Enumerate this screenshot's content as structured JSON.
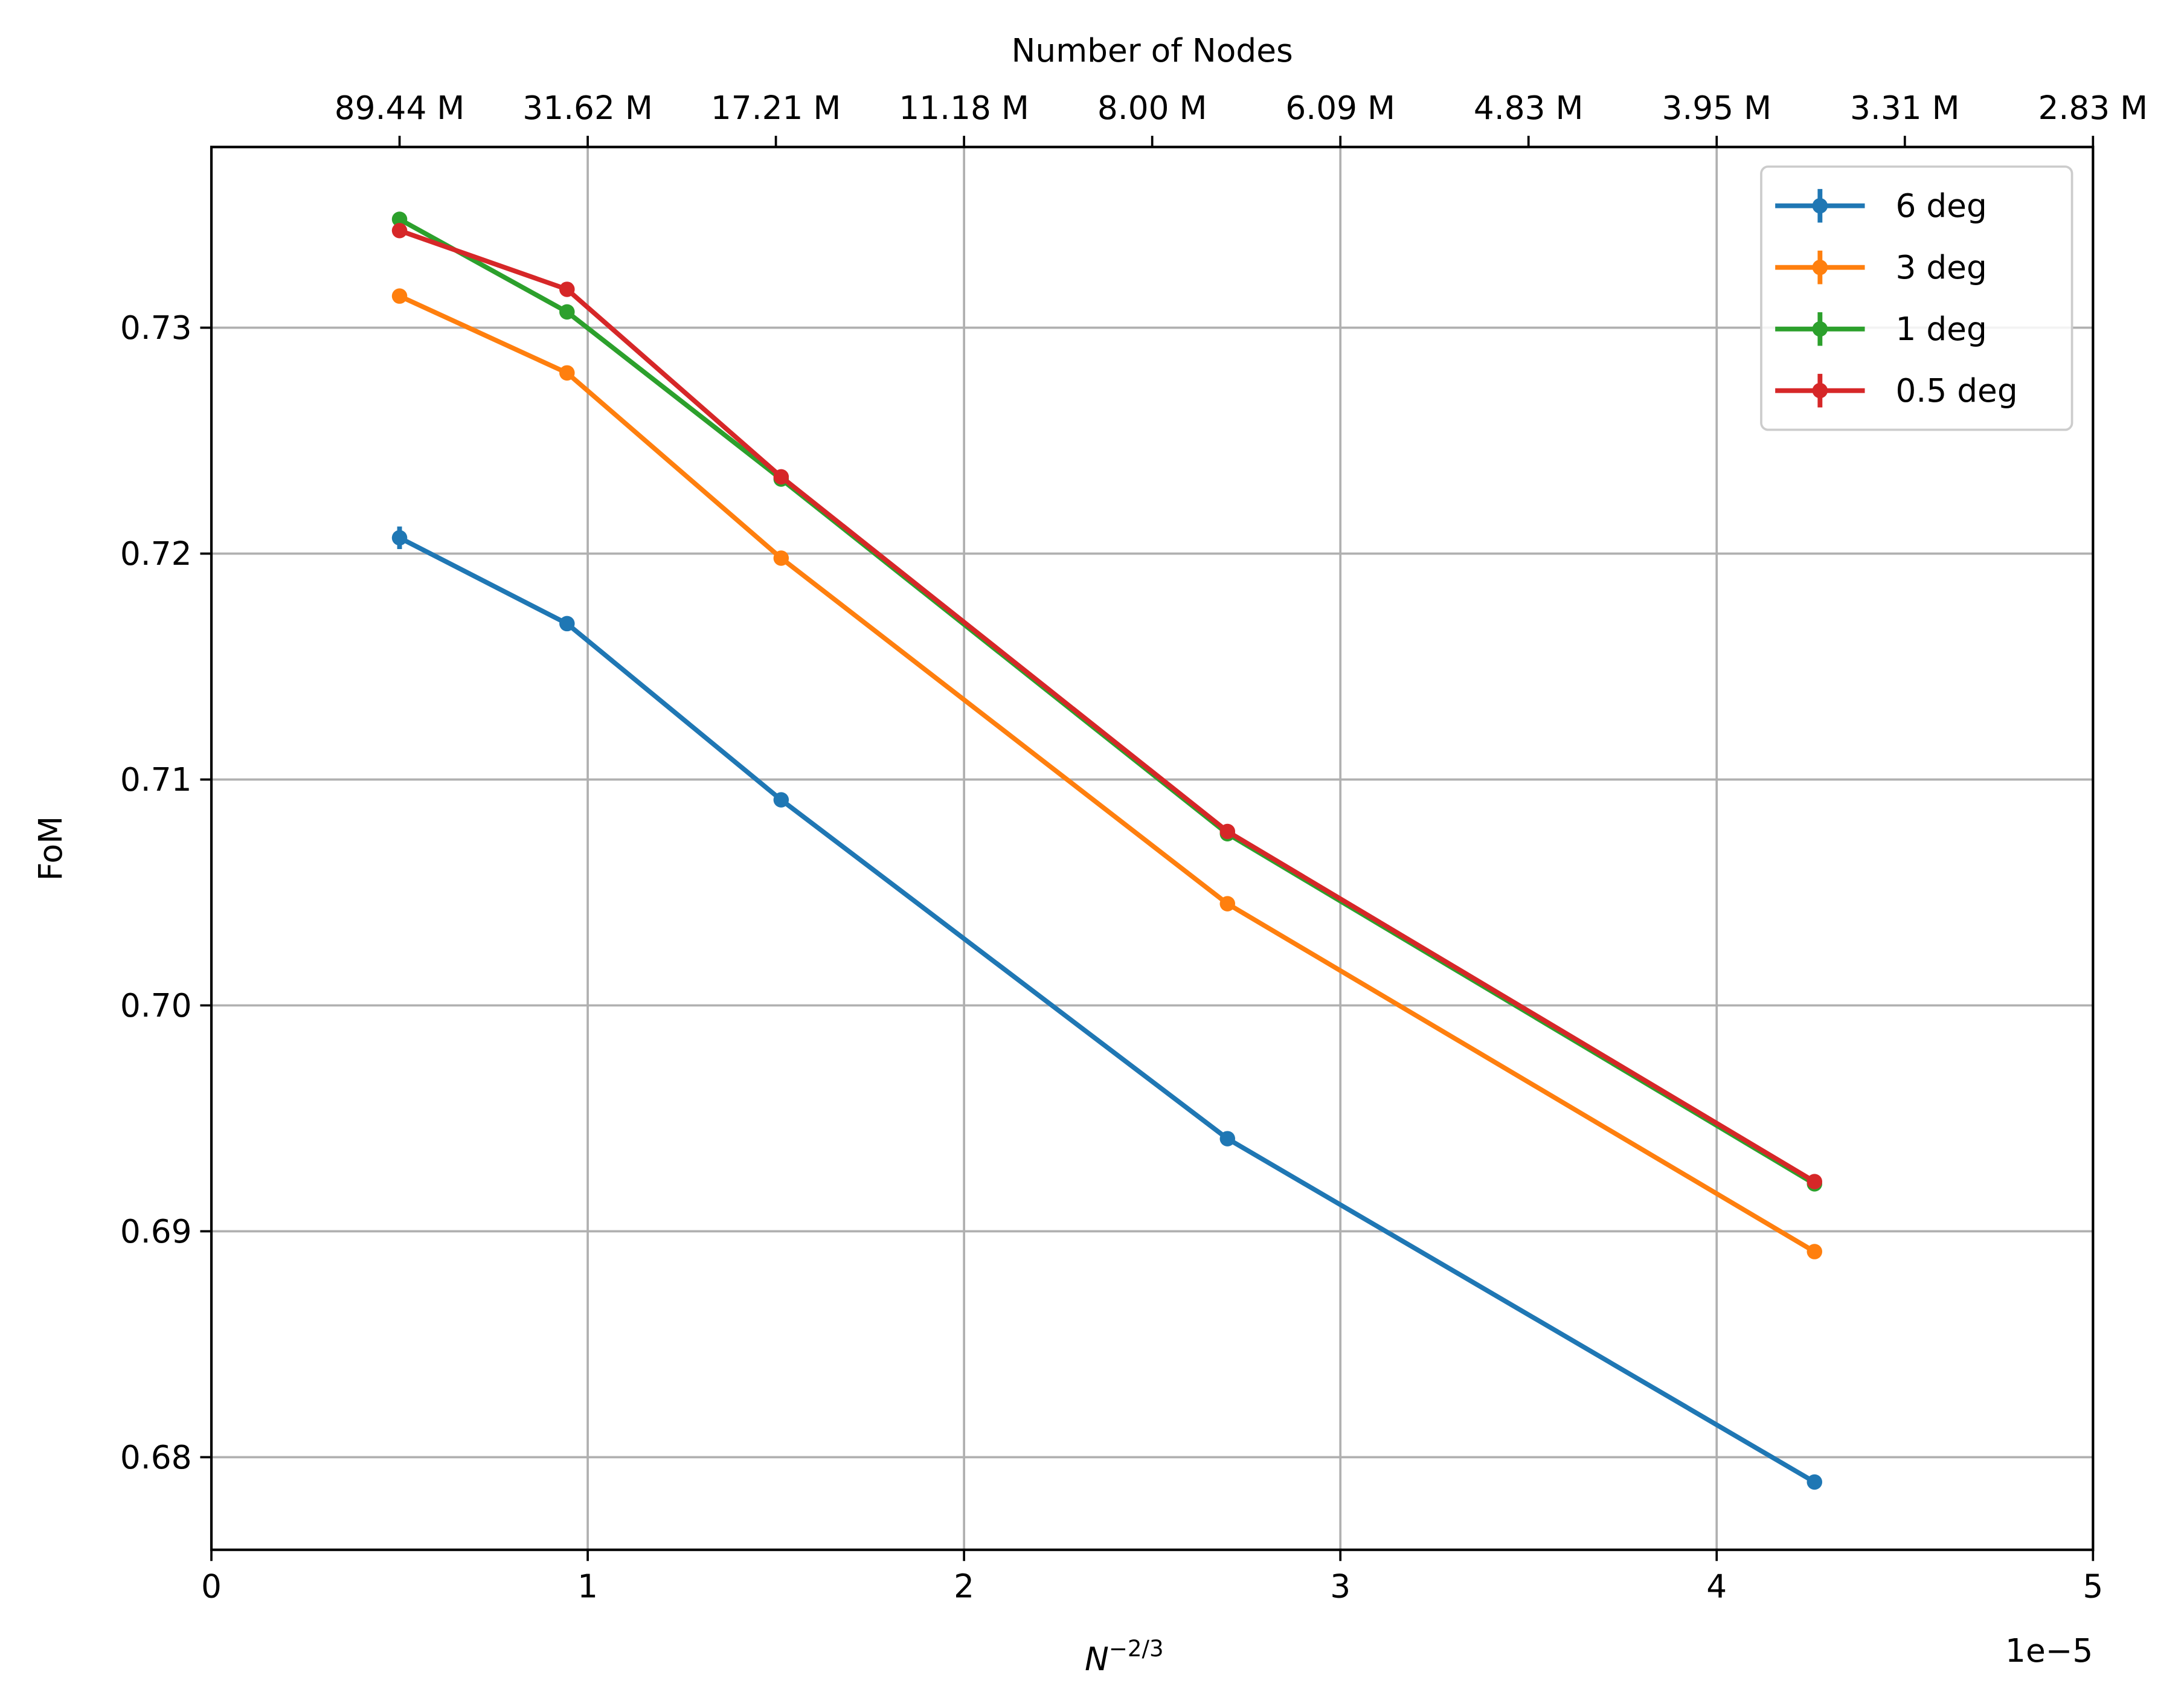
{
  "chart_data": {
    "type": "line",
    "xlabel": "N^{-2/3}",
    "xlabel_base": "N",
    "xlabel_exp": "−2/3",
    "x_offset_label": "1e−5",
    "ylabel": "FoM",
    "top_axis_label": "Number of Nodes",
    "xlim": [
      0,
      5
    ],
    "ylim": [
      0.6759,
      0.738
    ],
    "grid": true,
    "legend_position": "top-right",
    "x_ticks": [
      0,
      1,
      2,
      3,
      4,
      5
    ],
    "x_tick_labels": [
      "0",
      "1",
      "2",
      "3",
      "4",
      "5"
    ],
    "y_ticks": [
      0.68,
      0.69,
      0.7,
      0.71,
      0.72,
      0.73
    ],
    "y_tick_labels": [
      "0.68",
      "0.69",
      "0.70",
      "0.71",
      "0.72",
      "0.73"
    ],
    "top_ticks": [
      0.5,
      1.0,
      1.5,
      2.0,
      2.5,
      3.0,
      3.5,
      4.0,
      4.5,
      5.0
    ],
    "top_tick_labels": [
      "89.44 M",
      "31.62 M",
      "17.21 M",
      "11.18 M",
      "8.00 M",
      "6.09 M",
      "4.83 M",
      "3.95 M",
      "3.31 M",
      "2.83 M"
    ],
    "x": [
      0.5,
      0.945,
      1.514,
      2.7,
      4.26
    ],
    "series": [
      {
        "name": "6 deg",
        "color": "#1f77b4",
        "values": [
          0.7207,
          0.7169,
          0.7091,
          0.6941,
          0.6789
        ],
        "yerr": [
          0.0005,
          0.0001,
          0.0001,
          0.0001,
          0.0001
        ]
      },
      {
        "name": "3 deg",
        "color": "#ff7f0e",
        "values": [
          0.7314,
          0.728,
          0.7198,
          0.7045,
          0.6891
        ],
        "yerr": [
          0.0003,
          0.0001,
          0.0001,
          0.0001,
          0.0001
        ]
      },
      {
        "name": "1 deg",
        "color": "#2ca02c",
        "values": [
          0.7348,
          0.7307,
          0.7233,
          0.7076,
          0.6921
        ],
        "yerr": [
          0.0001,
          0.0001,
          0.0001,
          0.0001,
          0.0001
        ]
      },
      {
        "name": "0.5 deg",
        "color": "#d62728",
        "values": [
          0.7343,
          0.7317,
          0.7234,
          0.7077,
          0.6922
        ],
        "yerr": [
          0.0001,
          0.0001,
          0.0001,
          0.0001,
          0.0001
        ]
      }
    ]
  }
}
